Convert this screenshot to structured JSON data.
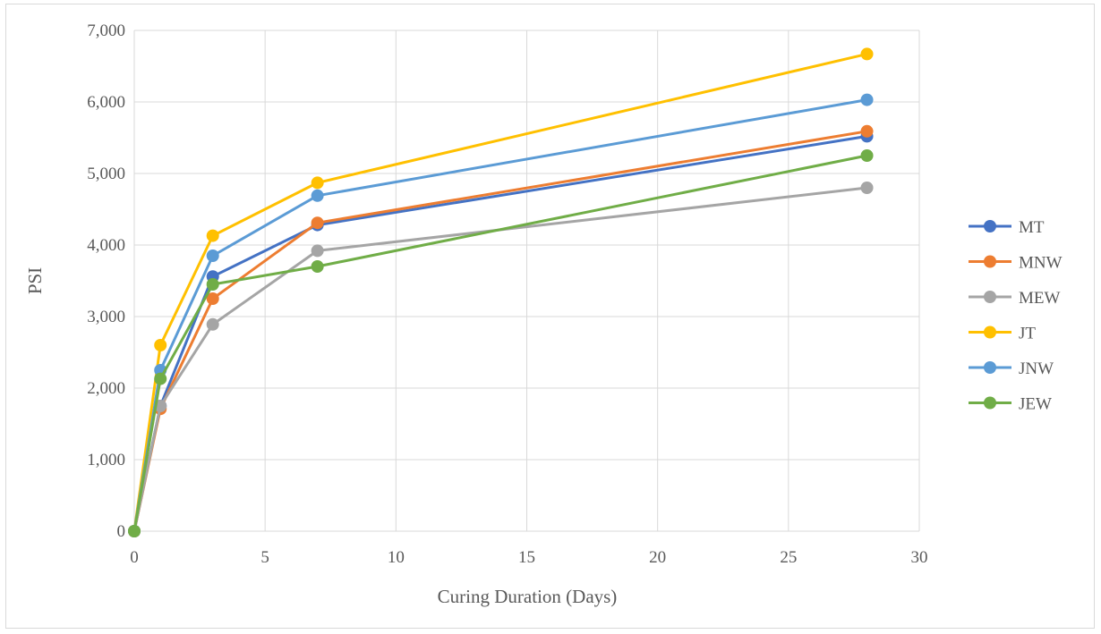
{
  "chart_data": {
    "type": "line",
    "title": "",
    "xlabel": "Curing Duration (Days)",
    "ylabel": "PSI",
    "xlim": [
      0,
      30
    ],
    "ylim": [
      0,
      7000
    ],
    "x_ticks": [
      0,
      5,
      10,
      15,
      20,
      25,
      30
    ],
    "y_ticks": [
      0,
      1000,
      2000,
      3000,
      4000,
      5000,
      6000,
      7000
    ],
    "x_tick_labels": [
      "0",
      "5",
      "10",
      "15",
      "20",
      "25",
      "30"
    ],
    "y_tick_labels": [
      "0",
      "1,000",
      "2,000",
      "3,000",
      "4,000",
      "5,000",
      "6,000",
      "7,000"
    ],
    "grid": "major, both axes",
    "legend_position": "right",
    "x": [
      0,
      1,
      3,
      7,
      28
    ],
    "series": [
      {
        "name": "MT",
        "color": "#4472C4",
        "values": [
          0,
          1750,
          3560,
          4280,
          5520
        ]
      },
      {
        "name": "MNW",
        "color": "#ED7D31",
        "values": [
          0,
          1710,
          3250,
          4310,
          5590
        ]
      },
      {
        "name": "MEW",
        "color": "#A5A5A5",
        "values": [
          0,
          1750,
          2890,
          3920,
          4800
        ]
      },
      {
        "name": "JT",
        "color": "#FFC000",
        "values": [
          0,
          2600,
          4130,
          4870,
          6670
        ]
      },
      {
        "name": "JNW",
        "color": "#5B9BD5",
        "values": [
          0,
          2250,
          3850,
          4690,
          6030
        ]
      },
      {
        "name": "JEW",
        "color": "#70AD47",
        "values": [
          0,
          2130,
          3450,
          3700,
          5250
        ]
      }
    ]
  }
}
